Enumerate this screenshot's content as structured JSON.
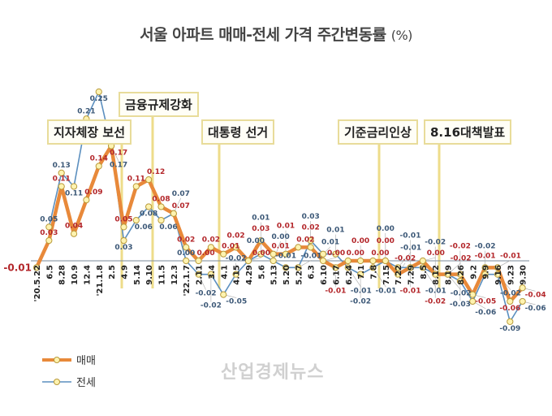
{
  "chart_data": {
    "type": "line",
    "title": "서울 아파트 매매-전세 가격 주간변동률",
    "unit": "(%)",
    "categories": [
      "'20.5.22",
      "6.5",
      "8.28",
      "10.9",
      "12.4",
      "'21.1.8",
      "2.5",
      "4.9",
      "5.14",
      "9.10",
      "11.5",
      "12.3",
      "'22.1.7",
      "2.11",
      "3.4",
      "4.1",
      "4.15",
      "4.29",
      "5.6",
      "5.13",
      "5.20",
      "5.27",
      "6.3",
      "6.10",
      "6.17",
      "6.24",
      "7.1",
      "7.8",
      "7.15",
      "7.22",
      "7.29",
      "8.5",
      "8.12",
      "8.19",
      "8.26",
      "9.2",
      "9.9",
      "9.16",
      "9.23",
      "9.30"
    ],
    "series": [
      {
        "name": "매매",
        "color": "#e8893a",
        "values": [
          -0.01,
          0.03,
          0.11,
          0.04,
          0.09,
          0.14,
          0.17,
          0.05,
          0.11,
          0.12,
          0.08,
          0.07,
          0.02,
          0.0,
          0.02,
          0.01,
          0.02,
          0.0,
          0.03,
          0.01,
          0.01,
          0.02,
          0.02,
          0.0,
          -0.01,
          0.0,
          0.0,
          0.0,
          0.0,
          -0.02,
          -0.01,
          0.0,
          -0.02,
          -0.02,
          -0.02,
          -0.05,
          -0.01,
          -0.01,
          -0.06,
          -0.04
        ]
      },
      {
        "name": "전세",
        "color": "#5b8fbf",
        "values": [
          null,
          0.05,
          0.13,
          0.11,
          0.21,
          0.25,
          0.17,
          0.03,
          0.06,
          0.08,
          0.06,
          0.07,
          0.0,
          -0.02,
          -0.02,
          -0.05,
          -0.02,
          0.0,
          0.01,
          0.0,
          -0.01,
          -0.01,
          0.03,
          0.01,
          0.01,
          -0.01,
          -0.02,
          -0.01,
          0.0,
          -0.01,
          -0.01,
          -0.01,
          -0.02,
          -0.02,
          -0.03,
          -0.06,
          -0.02,
          -0.02,
          -0.09,
          -0.06
        ]
      }
    ],
    "ylim": [
      -0.1,
      0.27
    ],
    "grid": false,
    "legend": "bottom-left",
    "annotations": [
      {
        "label": "지자체장 보선",
        "at": "4.9"
      },
      {
        "label": "금융규제강화",
        "at": "9.10"
      },
      {
        "label": "대통령 선거",
        "at": "4.1"
      },
      {
        "label": "기준금리인상",
        "at": "7.15"
      },
      {
        "label": "8.16대책발표",
        "at": "8.19"
      }
    ]
  },
  "watermark": "산업경제뉴스"
}
